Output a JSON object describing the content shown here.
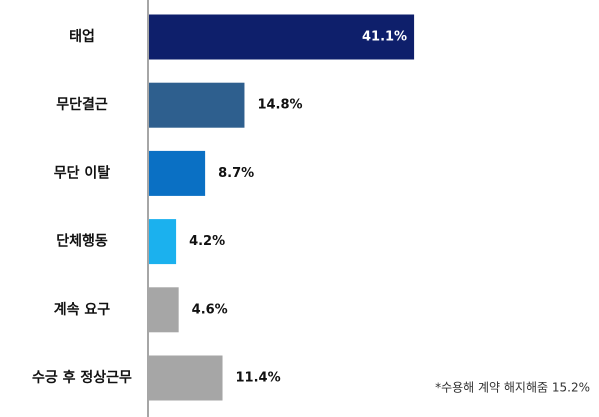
{
  "chart_data": {
    "type": "hbar",
    "categories": [
      "태업",
      "무단결근",
      "무단 이탈",
      "단체행동",
      "계속 요구",
      "수긍 후 정상근무"
    ],
    "values": [
      41.1,
      14.8,
      8.7,
      4.2,
      4.6,
      11.4
    ],
    "value_labels": [
      "41.1%",
      "14.8%",
      "8.7%",
      "4.2%",
      "4.6%",
      "11.4%"
    ],
    "colors": [
      "#0e1f6b",
      "#2e5f8e",
      "#0a70c4",
      "#1bb1ee",
      "#a6a6a6",
      "#a6a6a6"
    ],
    "annotation": "*수용해 계약 해지해줌 15.2%"
  }
}
